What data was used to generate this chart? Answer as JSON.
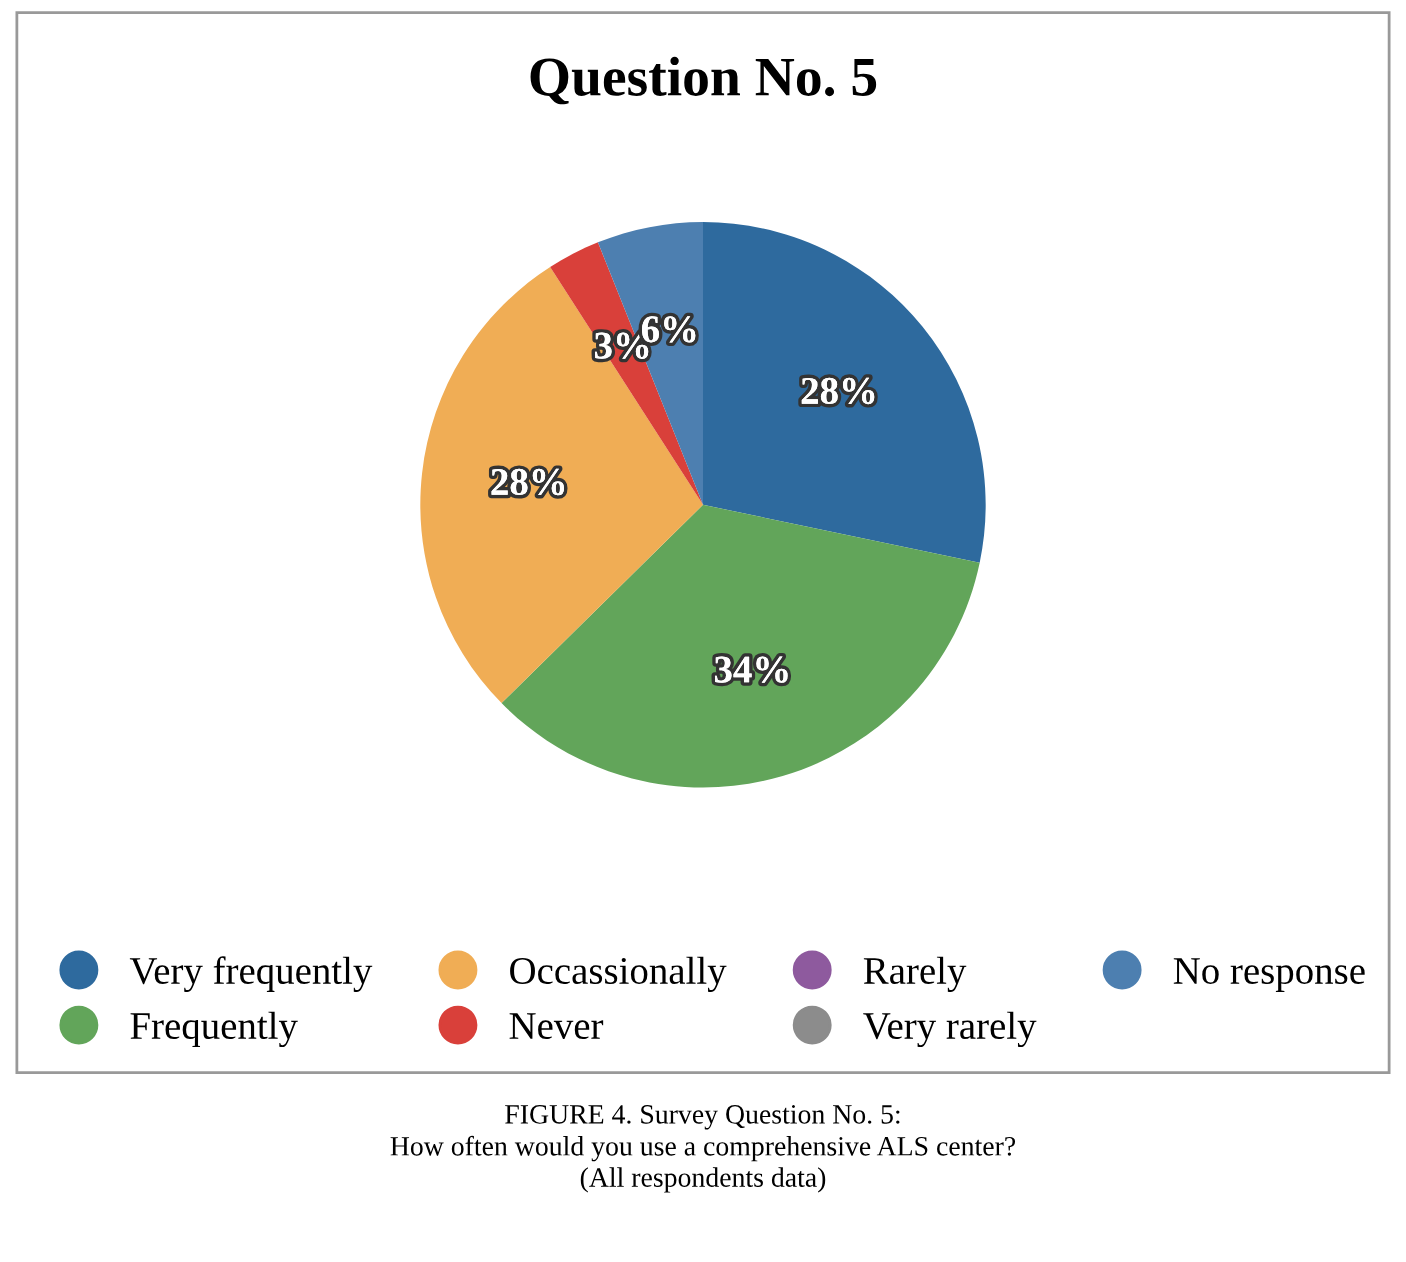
{
  "chart_data": {
    "type": "pie",
    "title": "Question No. 5",
    "categories": [
      "Very frequently",
      "Frequently",
      "Occassionally",
      "Never",
      "Rarely",
      "Very rarely",
      "No response"
    ],
    "values": [
      28,
      34,
      28,
      3,
      0,
      0,
      6
    ],
    "value_labels": [
      "28%",
      "34%",
      "28%",
      "3%",
      null,
      null,
      "6%"
    ],
    "colors": [
      "#2e6a9e",
      "#62a55a",
      "#f0ad55",
      "#d9403a",
      "#8e5a9e",
      "#8c8c8c",
      "#4d7fb0"
    ],
    "legend": "bottom",
    "annotations": [
      "FIGURE 4. Survey Question No. 5:",
      "How often would you use a comprehensive ALS center?",
      "(All respondents data)"
    ]
  }
}
